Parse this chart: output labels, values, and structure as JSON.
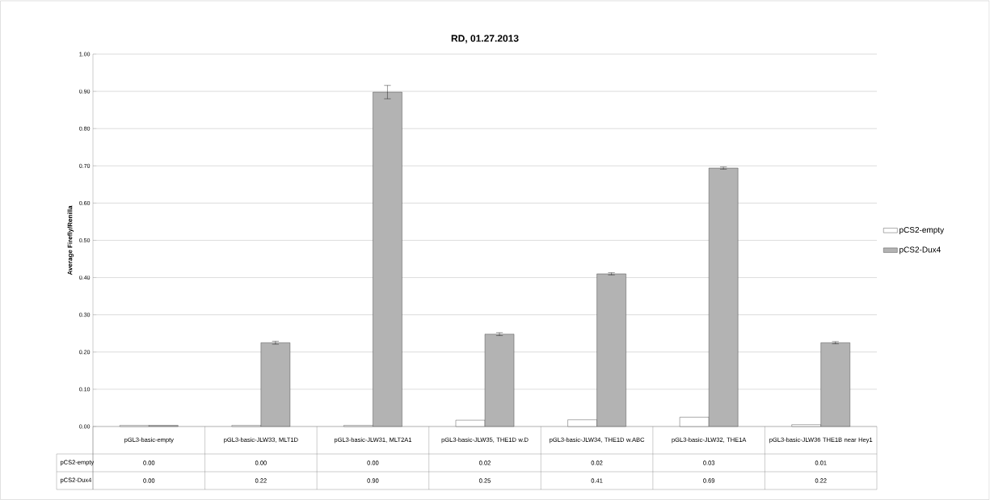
{
  "chart_data": {
    "type": "bar",
    "title": "RD, 01.27.2013",
    "ylabel": "Average Firefly/Renilla",
    "categories": [
      "pGL3-basic-empty",
      "pGL3-basic-JLW33, MLT1D",
      "pGL3-basic-JLW31, MLT2A1",
      "pGL3-basic-JLW35, THE1D w.D",
      "pGL3-basic-JLW34, THE1D w.ABC",
      "pGL3-basic-JLW32, THE1A",
      "pGL3-basic-JLW36 THE1B near Hey1"
    ],
    "series": [
      {
        "name": "pCS2-empty",
        "color": "#ffffff",
        "values": [
          0.003,
          0.003,
          0.003,
          0.017,
          0.018,
          0.025,
          0.005
        ],
        "value_labels": [
          "0.00",
          "0.00",
          "0.00",
          "0.02",
          "0.02",
          "0.03",
          "0.01"
        ]
      },
      {
        "name": "pCS2-Dux4",
        "color": "#b3b3b3",
        "values": [
          0.003,
          0.225,
          0.898,
          0.248,
          0.41,
          0.694,
          0.225
        ],
        "value_labels": [
          "0.00",
          "0.22",
          "0.90",
          "0.25",
          "0.41",
          "0.69",
          "0.22"
        ],
        "errors": [
          null,
          0.004,
          0.018,
          0.004,
          0.003,
          0.003,
          0.003
        ]
      }
    ],
    "ylim": [
      0,
      1
    ],
    "yticks": [
      {
        "value": 0,
        "label": "0.00"
      },
      {
        "value": 0.1,
        "label": "0.10"
      },
      {
        "value": 0.2,
        "label": "0.20"
      },
      {
        "value": 0.3,
        "label": "0.30"
      },
      {
        "value": 0.4,
        "label": "0.40"
      },
      {
        "value": 0.5,
        "label": "0.50"
      },
      {
        "value": 0.6,
        "label": "0.60"
      },
      {
        "value": 0.7,
        "label": "0.70"
      },
      {
        "value": 0.8,
        "label": "0.80"
      },
      {
        "value": 0.9,
        "label": "0.90"
      },
      {
        "value": 1,
        "label": "1.00"
      }
    ],
    "grid": "y",
    "legend": "right"
  }
}
